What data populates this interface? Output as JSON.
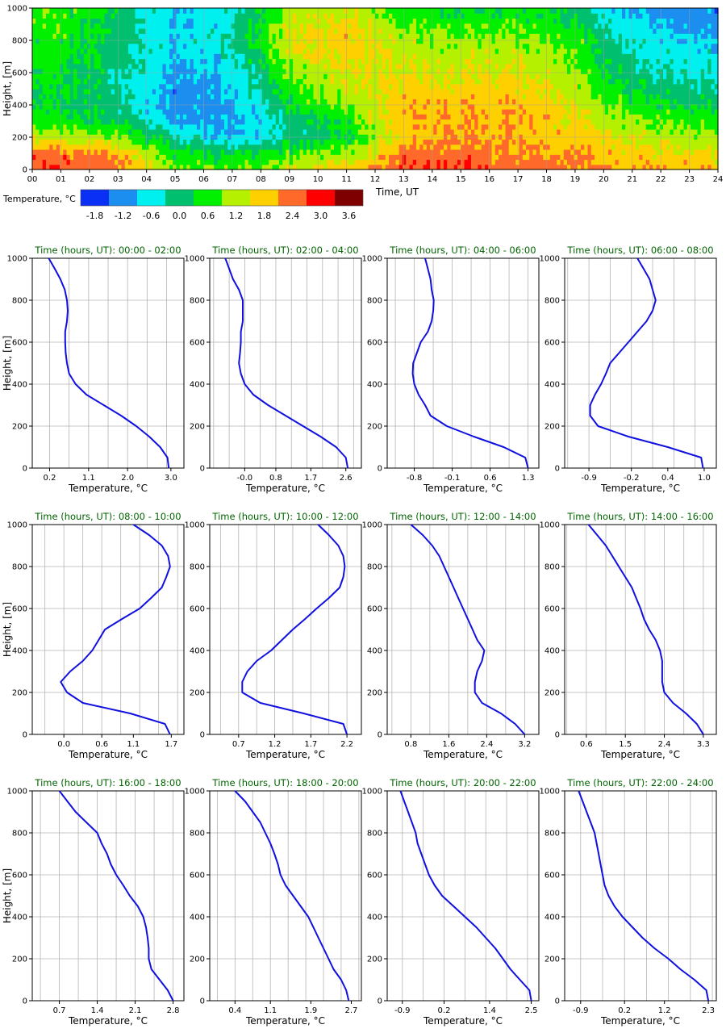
{
  "colors": {
    "profile_line": "#1010e0",
    "grid": "#b4b4b4",
    "title": "#006400",
    "levels": [
      "#0b30f5",
      "#1c8ef0",
      "#00f0f0",
      "#00c070",
      "#00f000",
      "#b4f000",
      "#ffd000",
      "#ff6a2a",
      "#ff0000",
      "#7f0000"
    ]
  },
  "chart_data": [
    {
      "type": "heatmap",
      "xlabel": "Time, UT",
      "ylabel": "Height, [m]",
      "x_ticks": [
        "00",
        "01",
        "02",
        "03",
        "04",
        "05",
        "06",
        "07",
        "08",
        "09",
        "10",
        "11",
        "12",
        "13",
        "14",
        "15",
        "16",
        "17",
        "18",
        "19",
        "20",
        "21",
        "22",
        "23",
        "24"
      ],
      "y_ticks": [
        "0",
        "200",
        "400",
        "600",
        "800",
        "1000"
      ],
      "xlim": [
        0,
        24
      ],
      "ylim": [
        0,
        1000
      ],
      "grid": true,
      "colorbar": {
        "label": "Temperature, °C",
        "tick_labels": [
          "-1.8",
          "-1.2",
          "-0.6",
          "0.0",
          "0.6",
          "1.2",
          "1.8",
          "2.4",
          "3.0",
          "3.6"
        ]
      },
      "approx_field": [
        {
          "from": 0,
          "to": 2,
          "temperatures": [
            2.9,
            2.7,
            1.6,
            0.8,
            0.6,
            0.6,
            0.7,
            0.8,
            0.9,
            1.0,
            1.1
          ]
        },
        {
          "from": 2,
          "to": 4,
          "temperatures": [
            2.6,
            2.2,
            1.3,
            0.4,
            0.2,
            0.1,
            0.1,
            0.2,
            0.3,
            0.3,
            0.4
          ]
        },
        {
          "from": 4,
          "to": 6,
          "temperatures": [
            1.3,
            0.8,
            0.0,
            -0.7,
            -0.9,
            -0.9,
            -0.7,
            -0.6,
            -0.5,
            -0.6,
            -0.7
          ]
        },
        {
          "from": 6,
          "to": 8,
          "temperatures": [
            1.0,
            0.6,
            -0.7,
            -0.9,
            -0.8,
            -0.6,
            -0.4,
            -0.2,
            0.0,
            -0.1,
            -0.2
          ]
        },
        {
          "from": 8,
          "to": 10,
          "temperatures": [
            1.6,
            0.9,
            0.1,
            0.2,
            0.6,
            0.9,
            1.2,
            1.5,
            1.7,
            1.6,
            1.3
          ]
        },
        {
          "from": 10,
          "to": 12,
          "temperatures": [
            2.2,
            1.4,
            0.7,
            0.9,
            1.3,
            1.6,
            1.8,
            2.1,
            2.2,
            2.0,
            1.7
          ]
        },
        {
          "from": 12,
          "to": 14,
          "temperatures": [
            3.1,
            2.6,
            2.2,
            2.3,
            2.3,
            2.1,
            1.9,
            1.7,
            1.5,
            1.2,
            0.8
          ]
        },
        {
          "from": 14,
          "to": 16,
          "temperatures": [
            3.2,
            2.7,
            2.4,
            2.4,
            2.3,
            2.1,
            1.8,
            1.6,
            1.3,
            1.0,
            0.6
          ]
        },
        {
          "from": 16,
          "to": 18,
          "temperatures": [
            2.7,
            2.4,
            2.3,
            2.3,
            2.2,
            2.0,
            1.8,
            1.6,
            1.4,
            1.0,
            0.7
          ]
        },
        {
          "from": 18,
          "to": 20,
          "temperatures": [
            2.6,
            2.4,
            2.2,
            2.0,
            1.8,
            1.6,
            1.3,
            1.2,
            1.0,
            0.7,
            0.4
          ]
        },
        {
          "from": 20,
          "to": 22,
          "temperatures": [
            2.4,
            2.1,
            1.7,
            1.3,
            0.9,
            0.5,
            0.2,
            0.0,
            -0.2,
            -0.5,
            -0.9
          ]
        },
        {
          "from": 22,
          "to": 24,
          "temperatures": [
            2.3,
            1.9,
            1.4,
            1.0,
            0.6,
            0.2,
            -0.1,
            -0.3,
            -0.5,
            -0.7,
            -0.9
          ]
        }
      ]
    },
    {
      "type": "line",
      "title_prefix": "Time (hours, UT):",
      "xlabel": "Temperature, °C",
      "ylabel": "Height, [m]",
      "y_ticks": [
        "0",
        "200",
        "400",
        "600",
        "800",
        "1000"
      ],
      "ylim": [
        0,
        1000
      ],
      "grid": true,
      "heights": [
        0,
        50,
        100,
        150,
        200,
        250,
        300,
        350,
        400,
        450,
        500,
        550,
        600,
        650,
        700,
        750,
        800,
        850,
        900,
        950,
        1000
      ],
      "panels": [
        {
          "period": "00:00 - 02:00",
          "xlim": [
            -0.2,
            3.3
          ],
          "x_tick_values": [
            0.2,
            1.1,
            2.0,
            3.0
          ],
          "x_tick_labels": [
            "0.2",
            "1.1",
            "2.0",
            "3.0"
          ],
          "temperatures": [
            2.95,
            2.92,
            2.75,
            2.5,
            2.2,
            1.85,
            1.45,
            1.05,
            0.8,
            0.65,
            0.6,
            0.57,
            0.56,
            0.56,
            0.6,
            0.62,
            0.6,
            0.55,
            0.45,
            0.32,
            0.18
          ]
        },
        {
          "period": "02:00 - 04:00",
          "xlim": [
            -0.9,
            3.0
          ],
          "x_tick_values": [
            -0.0,
            0.8,
            1.7,
            2.6
          ],
          "x_tick_labels": [
            "-0.0",
            "0.8",
            "1.7",
            "2.6"
          ],
          "temperatures": [
            2.65,
            2.6,
            2.35,
            1.95,
            1.5,
            1.05,
            0.6,
            0.22,
            0.0,
            -0.1,
            -0.15,
            -0.12,
            -0.1,
            -0.1,
            -0.05,
            -0.05,
            -0.05,
            -0.15,
            -0.3,
            -0.4,
            -0.5
          ]
        },
        {
          "period": "04:00 - 06:00",
          "xlim": [
            -1.3,
            1.5
          ],
          "x_tick_values": [
            -0.8,
            -0.1,
            0.6,
            1.3
          ],
          "x_tick_labels": [
            "-0.8",
            "-0.1",
            "0.6",
            "1.3"
          ],
          "temperatures": [
            1.3,
            1.25,
            0.85,
            0.3,
            -0.2,
            -0.5,
            -0.6,
            -0.72,
            -0.8,
            -0.83,
            -0.82,
            -0.75,
            -0.68,
            -0.55,
            -0.48,
            -0.45,
            -0.44,
            -0.48,
            -0.5,
            -0.55,
            -0.6
          ]
        },
        {
          "period": "06:00 - 08:00",
          "xlim": [
            -1.3,
            1.2
          ],
          "x_tick_values": [
            -0.9,
            -0.2,
            0.4,
            1.0
          ],
          "x_tick_labels": [
            "-0.9",
            "-0.2",
            "0.4",
            "1.0"
          ],
          "temperatures": [
            0.98,
            0.95,
            0.4,
            -0.25,
            -0.75,
            -0.88,
            -0.88,
            -0.8,
            -0.7,
            -0.62,
            -0.55,
            -0.4,
            -0.25,
            -0.1,
            0.05,
            0.15,
            0.2,
            0.15,
            0.1,
            0.0,
            -0.1
          ]
        },
        {
          "period": "08:00 - 10:00",
          "xlim": [
            -0.5,
            1.9
          ],
          "x_tick_values": [
            0.0,
            0.6,
            1.1,
            1.7
          ],
          "x_tick_labels": [
            "0.0",
            "0.6",
            "1.1",
            "1.7"
          ],
          "temperatures": [
            1.68,
            1.6,
            1.05,
            0.3,
            0.05,
            -0.05,
            0.1,
            0.3,
            0.45,
            0.55,
            0.65,
            0.92,
            1.2,
            1.38,
            1.55,
            1.62,
            1.68,
            1.65,
            1.55,
            1.35,
            1.1
          ]
        },
        {
          "period": "10:00 - 12:00",
          "xlim": [
            0.3,
            2.4
          ],
          "x_tick_values": [
            0.7,
            1.2,
            1.7,
            2.2
          ],
          "x_tick_labels": [
            "0.7",
            "1.2",
            "1.7",
            "2.2"
          ],
          "temperatures": [
            2.2,
            2.15,
            1.6,
            1.0,
            0.75,
            0.75,
            0.82,
            0.95,
            1.15,
            1.3,
            1.45,
            1.62,
            1.78,
            1.95,
            2.1,
            2.15,
            2.17,
            2.15,
            2.08,
            1.95,
            1.8
          ]
        },
        {
          "period": "12:00 - 14:00",
          "xlim": [
            0.3,
            3.5
          ],
          "x_tick_values": [
            0.8,
            1.6,
            2.4,
            3.2
          ],
          "x_tick_labels": [
            "0.8",
            "1.6",
            "2.4",
            "3.2"
          ],
          "temperatures": [
            3.2,
            3.0,
            2.7,
            2.3,
            2.15,
            2.15,
            2.2,
            2.3,
            2.35,
            2.2,
            2.1,
            2.0,
            1.9,
            1.8,
            1.7,
            1.6,
            1.5,
            1.4,
            1.25,
            1.05,
            0.8
          ]
        },
        {
          "period": "14:00 - 16:00",
          "xlim": [
            0.1,
            3.6
          ],
          "x_tick_values": [
            0.6,
            1.5,
            2.4,
            3.3
          ],
          "x_tick_labels": [
            "0.6",
            "1.5",
            "2.4",
            "3.3"
          ],
          "temperatures": [
            3.3,
            3.15,
            2.9,
            2.6,
            2.4,
            2.35,
            2.35,
            2.35,
            2.3,
            2.2,
            2.05,
            1.93,
            1.85,
            1.75,
            1.65,
            1.5,
            1.35,
            1.2,
            1.05,
            0.85,
            0.65
          ]
        },
        {
          "period": "16:00 - 18:00",
          "xlim": [
            0.2,
            3.0
          ],
          "x_tick_values": [
            0.7,
            1.4,
            2.1,
            2.8
          ],
          "x_tick_labels": [
            "0.7",
            "1.4",
            "2.1",
            "2.8"
          ],
          "temperatures": [
            2.8,
            2.7,
            2.55,
            2.4,
            2.35,
            2.35,
            2.33,
            2.3,
            2.25,
            2.15,
            2.0,
            1.88,
            1.75,
            1.65,
            1.58,
            1.48,
            1.4,
            1.2,
            1.0,
            0.85,
            0.7
          ]
        },
        {
          "period": "18:00 - 20:00",
          "xlim": [
            -0.1,
            2.9
          ],
          "x_tick_values": [
            0.4,
            1.1,
            1.9,
            2.7
          ],
          "x_tick_labels": [
            "0.4",
            "1.1",
            "1.9",
            "2.7"
          ],
          "temperatures": [
            2.65,
            2.6,
            2.5,
            2.35,
            2.25,
            2.15,
            2.05,
            1.95,
            1.85,
            1.7,
            1.55,
            1.4,
            1.3,
            1.25,
            1.18,
            1.1,
            1.0,
            0.9,
            0.75,
            0.6,
            0.4
          ]
        },
        {
          "period": "20:00 - 22:00",
          "xlim": [
            -1.3,
            2.7
          ],
          "x_tick_values": [
            -0.9,
            0.2,
            1.4,
            2.5
          ],
          "x_tick_labels": [
            "-0.9",
            "0.2",
            "1.4",
            "2.5"
          ],
          "temperatures": [
            2.5,
            2.45,
            2.2,
            1.95,
            1.75,
            1.55,
            1.3,
            1.05,
            0.75,
            0.45,
            0.15,
            -0.05,
            -0.2,
            -0.3,
            -0.4,
            -0.5,
            -0.55,
            -0.65,
            -0.75,
            -0.85,
            -0.95
          ]
        },
        {
          "period": "22:00 - 24:00",
          "xlim": [
            -1.3,
            2.5
          ],
          "x_tick_values": [
            -0.9,
            0.2,
            1.2,
            2.3
          ],
          "x_tick_labels": [
            "-0.9",
            "0.2",
            "1.2",
            "2.3"
          ],
          "temperatures": [
            2.3,
            2.25,
            1.95,
            1.6,
            1.3,
            0.95,
            0.65,
            0.4,
            0.15,
            -0.05,
            -0.2,
            -0.3,
            -0.35,
            -0.4,
            -0.45,
            -0.5,
            -0.55,
            -0.65,
            -0.75,
            -0.85,
            -0.95
          ]
        }
      ]
    }
  ]
}
